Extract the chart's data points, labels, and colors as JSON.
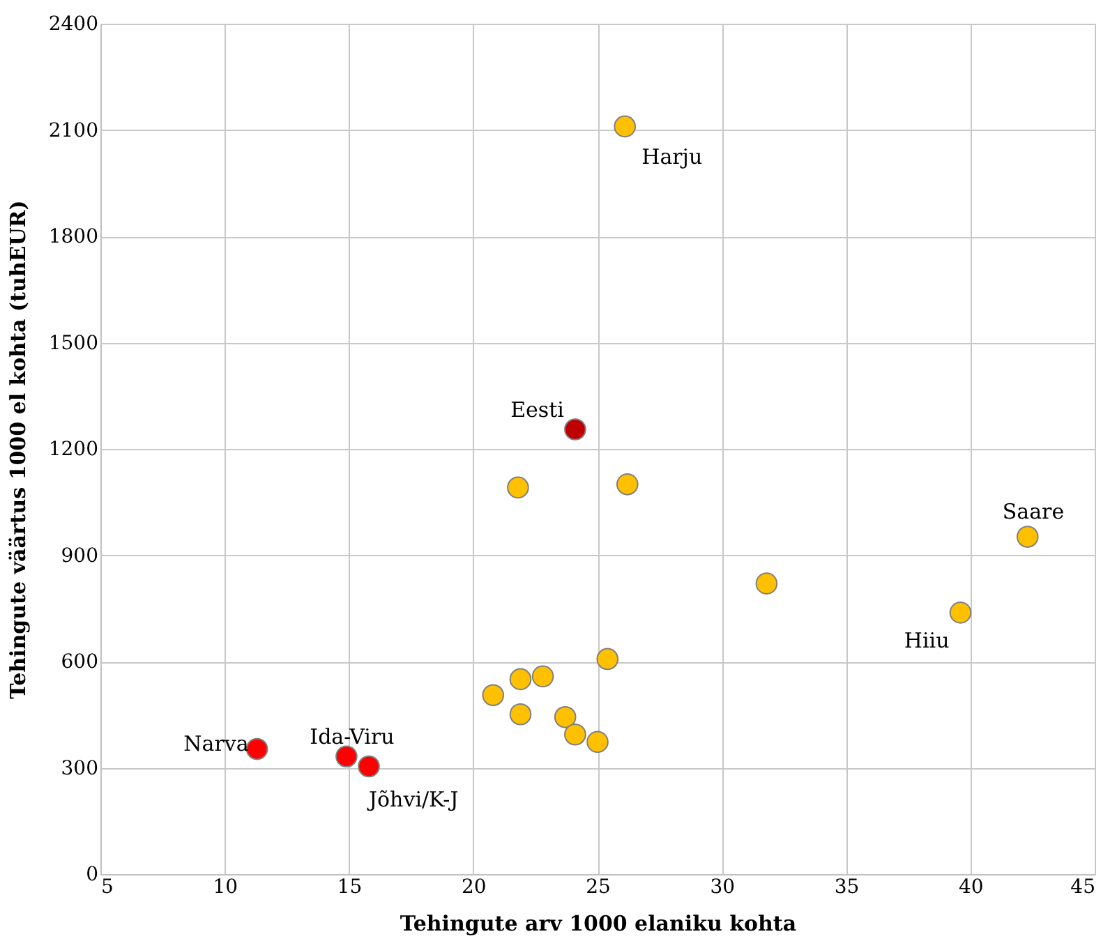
{
  "chart_data": {
    "type": "scatter",
    "xlabel": "Tehingute arv 1000 elaniku kohta",
    "ylabel": "Tehingute väärtus 1000 el kohta (tuhEUR)",
    "xlim": [
      5,
      45
    ],
    "xticks": [
      5,
      10,
      15,
      20,
      25,
      30,
      35,
      40,
      45
    ],
    "ylim": [
      0,
      2400
    ],
    "yticks": [
      0,
      300,
      600,
      900,
      1200,
      1500,
      1800,
      2100,
      2400
    ],
    "grid": true,
    "marker": "circle",
    "series": [
      {
        "color": "#ffc000",
        "x": [
          26.1,
          21.8,
          26.2,
          42.3,
          31.8,
          39.6,
          25.4,
          22.8,
          21.9,
          20.8,
          21.9,
          23.7,
          24.1,
          25.0
        ],
        "values": [
          2110,
          1091,
          1100,
          952,
          820,
          738,
          607,
          558,
          550,
          505,
          451,
          443,
          394,
          373
        ]
      },
      {
        "color": "#c00000",
        "x": [
          24.1
        ],
        "values": [
          1255
        ]
      },
      {
        "color": "#ff0000",
        "x": [
          11.3,
          14.9,
          15.8
        ],
        "values": [
          353,
          332,
          304
        ]
      }
    ],
    "annotations": [
      {
        "text": "Harju",
        "x": 26.1,
        "y": 2110
      },
      {
        "text": "Eesti",
        "x": 24.1,
        "y": 1255
      },
      {
        "text": "Saare",
        "x": 42.3,
        "y": 952
      },
      {
        "text": "Hiiu",
        "x": 39.6,
        "y": 738
      },
      {
        "text": "Narva",
        "x": 11.3,
        "y": 353
      },
      {
        "text": "Ida-Viru",
        "x": 14.9,
        "y": 332
      },
      {
        "text": "Jõhvi/K-J",
        "x": 15.8,
        "y": 304
      }
    ]
  }
}
